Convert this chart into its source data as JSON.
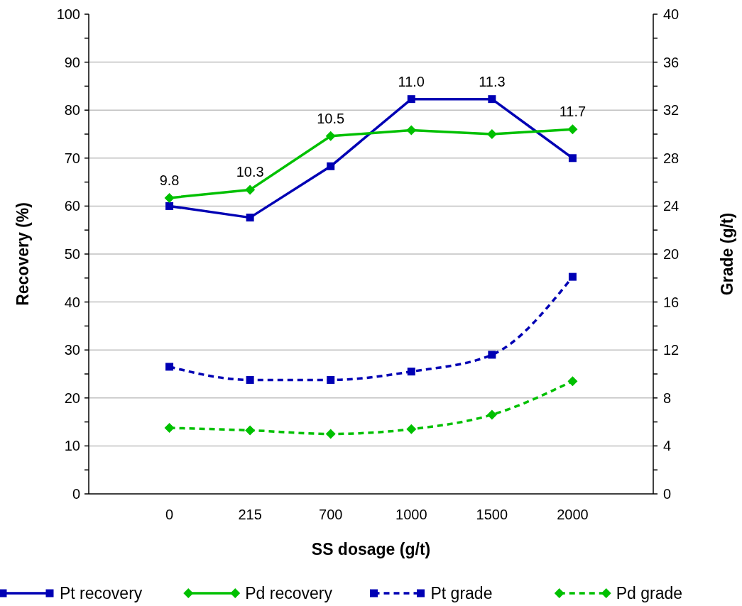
{
  "chart_data": {
    "type": "line",
    "xlabel": "SS dosage  (g/t)",
    "ylabel": "Recovery (%)",
    "y2label": "Grade (g/t)",
    "categories": [
      "0",
      "215",
      "700",
      "1000",
      "1500",
      "2000"
    ],
    "series": [
      {
        "name": "Pt recovery",
        "color": "#0000b4",
        "marker": "square",
        "line_style": "solid",
        "values": [
          60,
          57.6,
          68.3,
          82.3,
          82.3,
          70
        ]
      },
      {
        "name": "Pd recovery",
        "color": "#00c000",
        "marker": "diamond",
        "line_style": "solid",
        "values": [
          61.7,
          63.4,
          74.6,
          75.8,
          75,
          76
        ]
      },
      {
        "name": "Pt grade",
        "color": "#0000b4",
        "marker": "square",
        "line_style": "dashed",
        "axis": "y2",
        "values": [
          10.6,
          9.5,
          9.5,
          10.2,
          11.6,
          18.1
        ]
      },
      {
        "name": "Pd grade",
        "color": "#00c000",
        "marker": "diamond",
        "line_style": "dashed",
        "axis": "y2",
        "values": [
          5.5,
          5.3,
          5,
          5.4,
          6.6,
          9.4
        ]
      }
    ],
    "ylim": [
      0,
      100
    ],
    "yticks": [
      0,
      {
        "value": 5,
        "label": null
      },
      10,
      {
        "value": 15,
        "label": null
      },
      20,
      {
        "value": 25,
        "label": null
      },
      30,
      {
        "value": 35,
        "label": null
      },
      40,
      {
        "value": 45,
        "label": null
      },
      50,
      {
        "value": 55,
        "label": null
      },
      60,
      {
        "value": 65,
        "label": null
      },
      70,
      {
        "value": 75,
        "label": null
      },
      80,
      {
        "value": 85,
        "label": null
      },
      90,
      {
        "value": 95,
        "label": null
      },
      100
    ],
    "y2lim": [
      0,
      40
    ],
    "y2ticks": [
      0,
      {
        "value": 2,
        "label": null
      },
      4,
      {
        "value": 6,
        "label": null
      },
      8,
      {
        "value": 10,
        "label": null
      },
      12,
      {
        "value": 14,
        "label": null
      },
      16,
      {
        "value": 18,
        "label": null
      },
      20,
      {
        "value": 22,
        "label": null
      },
      24,
      {
        "value": 26,
        "label": null
      },
      28,
      {
        "value": 30,
        "label": null
      },
      32,
      {
        "value": 34,
        "label": null
      },
      36,
      {
        "value": 38,
        "label": null
      },
      40
    ],
    "grid": "y",
    "legend": "bottom",
    "annotations": [
      {
        "text": "9.8",
        "x": "0",
        "y": 61.7
      },
      {
        "text": "10.3",
        "x": "215",
        "y": 63.4
      },
      {
        "text": "10.5",
        "x": "700",
        "y": 74.6
      },
      {
        "text": "11.0",
        "x": "1000",
        "y": 82.3
      },
      {
        "text": "11.3",
        "x": "1500",
        "y": 82.3
      },
      {
        "text": "11.7",
        "x": "2000",
        "y": 76
      }
    ]
  }
}
